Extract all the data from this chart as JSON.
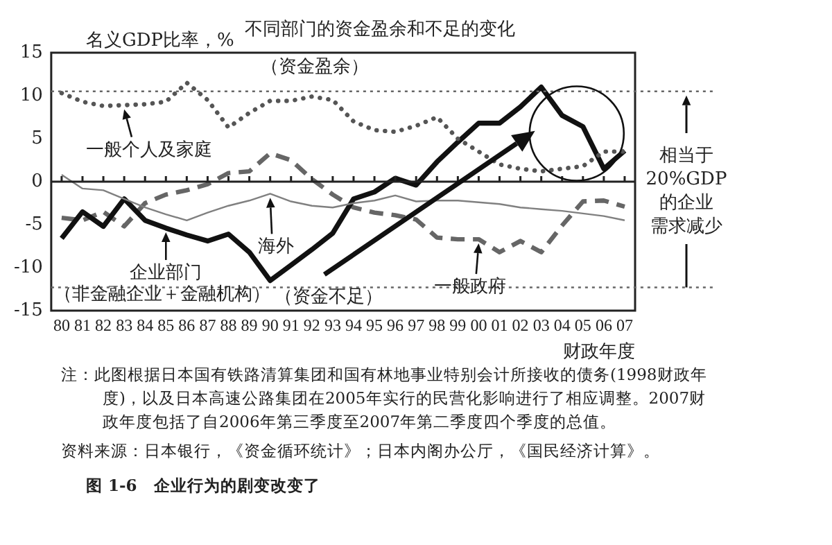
{
  "chart_data": {
    "type": "line",
    "title": "不同部门的资金盈余和不足的变化",
    "ylabel": "名义GDP比率，%",
    "xlabel": "财政年度",
    "categories": [
      "80",
      "81",
      "82",
      "83",
      "84",
      "85",
      "86",
      "87",
      "88",
      "89",
      "90",
      "91",
      "92",
      "93",
      "94",
      "95",
      "96",
      "97",
      "98",
      "99",
      "00",
      "01",
      "02",
      "03",
      "04",
      "05",
      "06",
      "07"
    ],
    "series": [
      {
        "color": "#555555",
        "line_style": "dotted",
        "values": [
          10.3,
          9.3,
          8.8,
          8.9,
          9,
          9.3,
          11.5,
          9.5,
          6.3,
          8,
          9.4,
          9.4,
          9.9,
          9.5,
          7,
          6,
          5.8,
          6.5,
          7.5,
          5,
          3.5,
          2,
          1.5,
          1.2,
          1.5,
          1.8,
          3.5,
          3.5
        ]
      },
      {
        "color": "#808080",
        "line_style": "solid",
        "values": [
          0.8,
          -0.8,
          -1,
          -2,
          -3,
          -3.8,
          -4.5,
          -3.6,
          -2.8,
          -2.2,
          -1.4,
          -2.3,
          -2.8,
          -3,
          -2.5,
          -2.2,
          -1.6,
          -2.3,
          -2.2,
          -2.2,
          -2.4,
          -2.6,
          -3,
          -3.2,
          -3.4,
          -3.7,
          -4,
          -4.5
        ]
      },
      {
        "color": "#111111",
        "line_style": "solid",
        "values": [
          -6.6,
          -3.5,
          -5.2,
          -2,
          -4.5,
          -5.4,
          -6.2,
          -6.9,
          -6.1,
          -8.2,
          -11.5,
          -9.7,
          -7.9,
          -6,
          -2,
          -1.2,
          0.4,
          -0.4,
          2.3,
          4.6,
          6.8,
          6.8,
          8.7,
          11,
          7.7,
          6.4,
          1.5,
          3.6
        ]
      },
      {
        "color": "#666666",
        "line_style": "dashed",
        "values": [
          -4.2,
          -4.5,
          -3.5,
          -5.2,
          -2.5,
          -1.5,
          -1,
          -0.3,
          1,
          1.2,
          3.3,
          2.5,
          0.3,
          -1.5,
          -3,
          -3.6,
          -3.9,
          -4.4,
          -6.5,
          -6.7,
          -6.7,
          -8.2,
          -6.9,
          -8.2,
          -5.1,
          -2.3,
          -2.2,
          -2.9
        ]
      }
    ],
    "ylim": [
      -15,
      15
    ],
    "yticks": [
      -15,
      -10,
      -5,
      0,
      5,
      10,
      15
    ],
    "grid": false,
    "legend": false,
    "marker": "none",
    "ref_lines": [
      {
        "axis": "y",
        "value": 0,
        "color": "#222222",
        "line_style": "solid"
      },
      {
        "axis": "y",
        "value": 10.5,
        "color": "#666666",
        "line_style": "dotted"
      },
      {
        "axis": "y",
        "value": -12.3,
        "color": "#666666",
        "line_style": "dotted"
      }
    ],
    "annotations": [
      "（资金盈余）",
      "（非金融企业＋金融机构）",
      "（资金不足）",
      "相当于20%GDP的企业需求减少",
      "注：此图根据日本国有铁路清算集团和国有林地事业特别会计所接收的债务(1998财政年度)，以及日本高速公路集团在2005年实行的民营化影响进行了相应调整。2007财政年度包括了自2006年第三季度至2007年第二季度四个季度的总值。",
      "资料来源：日本银行，《资金循环统计》；日本内阁办公厅，《国民经济计算》。",
      "图 1-6　企业行为的剧变改变了",
      {
        "text": "一般个人及家庭",
        "x": "83",
        "y": 8.9
      },
      {
        "text": "海外",
        "x": "90",
        "y": -1.4
      },
      {
        "text": "企业部门",
        "x": "85",
        "y": -5.4
      },
      {
        "text": "一般政府",
        "x": "00",
        "y": -6.7
      }
    ]
  }
}
